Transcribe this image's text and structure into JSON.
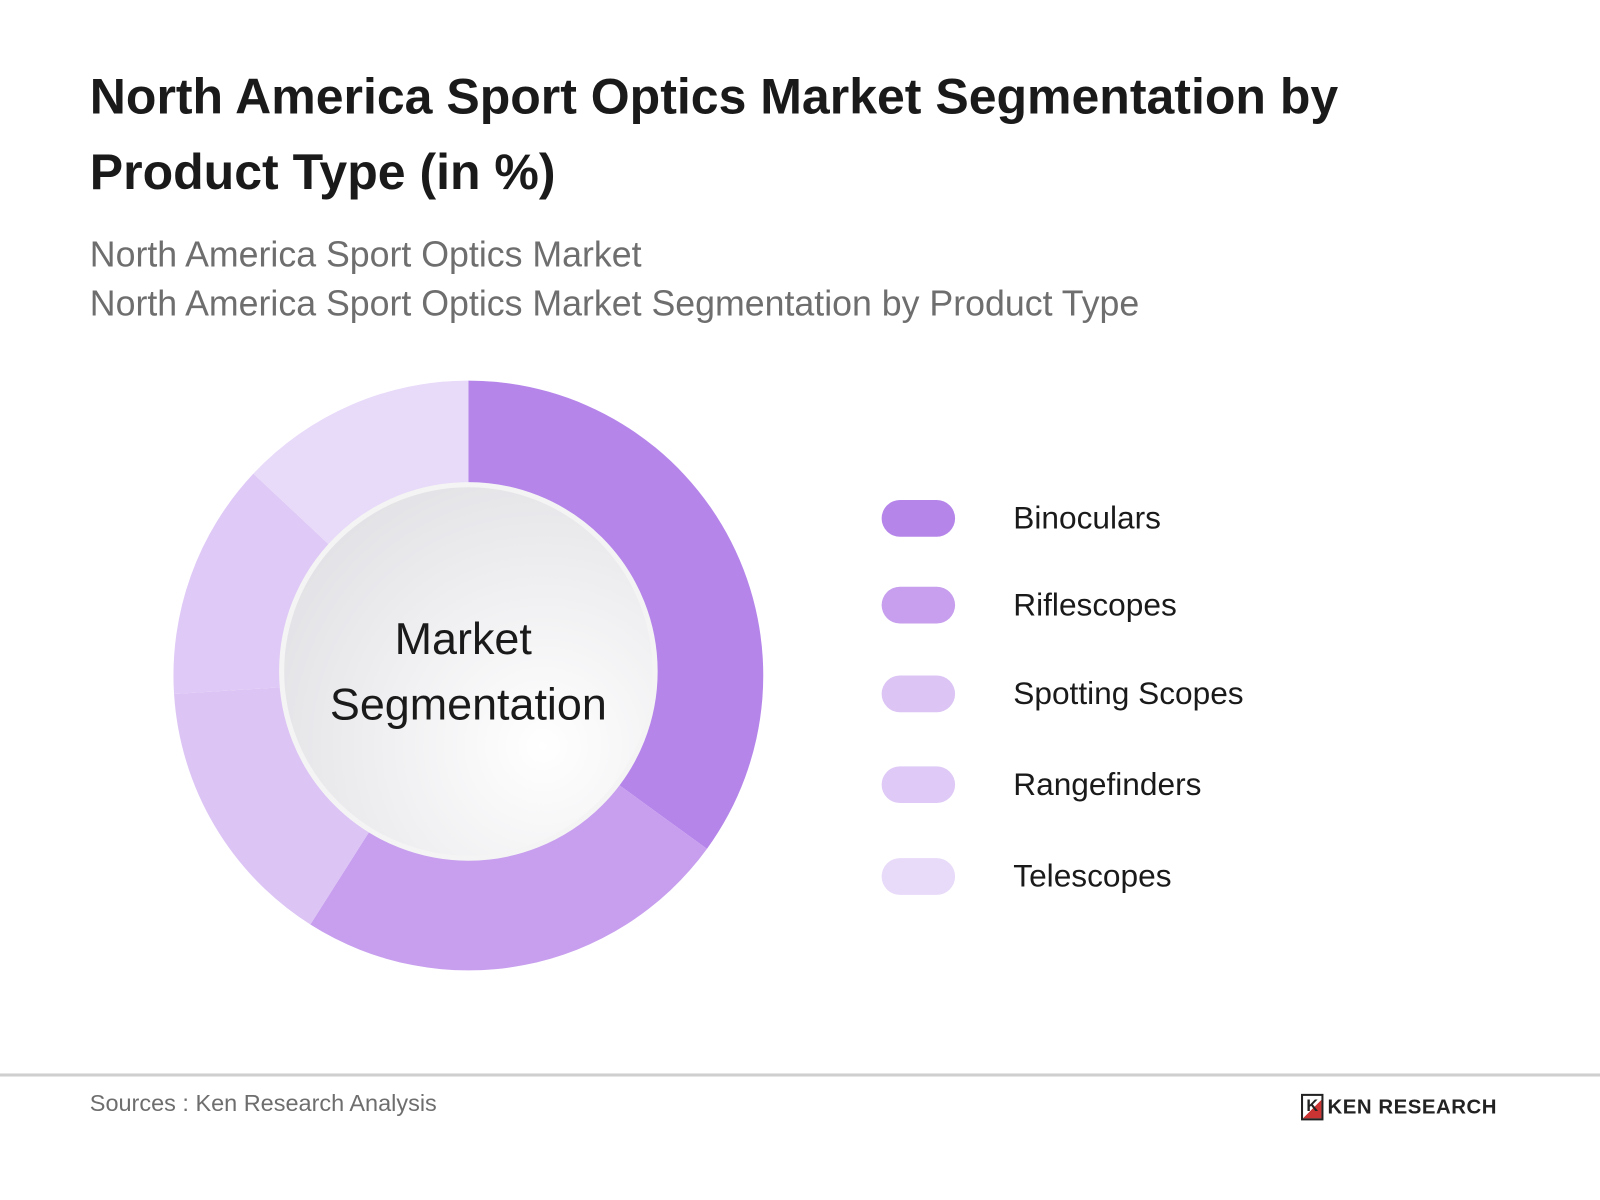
{
  "title": "North America Sport Optics Market Segmentation by Product Type (in %)",
  "subtitle_1": "North America Sport Optics Market",
  "subtitle_2": "North America Sport Optics Market Segmentation by Product Type",
  "center_label_1": "Market",
  "center_label_2": "Segmentation",
  "source": "Sources : Ken Research Analysis",
  "logo_text": "KEN RESEARCH",
  "chart_data": {
    "type": "pie",
    "variant": "donut",
    "title": "North America Sport Optics Market Segmentation by Product Type (in %)",
    "categories": [
      "Binoculars",
      "Riflescopes",
      "Spotting Scopes",
      "Rangefinders",
      "Telescopes"
    ],
    "values": [
      35,
      24,
      15,
      13,
      13
    ],
    "colors": [
      "#b585ea",
      "#c79fee",
      "#dcc4f5",
      "#dfc9f6",
      "#e8daf9"
    ],
    "legend_position": "right"
  }
}
